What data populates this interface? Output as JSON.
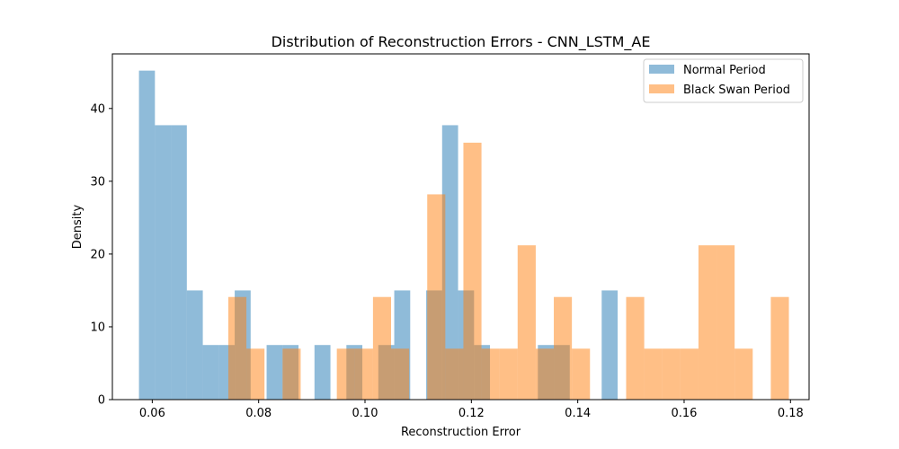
{
  "chart_data": {
    "type": "bar",
    "title": "Distribution of Reconstruction Errors - CNN_LSTM_AE",
    "xlabel": "Reconstruction Error",
    "ylabel": "Density",
    "xlim": [
      0.0525,
      0.1835
    ],
    "ylim": [
      0,
      47.5
    ],
    "xticks": [
      0.06,
      0.08,
      0.1,
      0.12,
      0.14,
      0.16,
      0.18
    ],
    "xtick_labels": [
      "0.06",
      "0.08",
      "0.10",
      "0.12",
      "0.14",
      "0.16",
      "0.18"
    ],
    "yticks": [
      0,
      10,
      20,
      30,
      40
    ],
    "ytick_labels": [
      "0",
      "10",
      "20",
      "30",
      "40"
    ],
    "legend_position": "top-right",
    "series": [
      {
        "name": "Normal Period",
        "color": "#1f77b4",
        "alpha": 0.5,
        "bins": [
          [
            0.0575,
            0.0605,
            45.2
          ],
          [
            0.0605,
            0.0635,
            37.7
          ],
          [
            0.0635,
            0.0665,
            37.7
          ],
          [
            0.0665,
            0.0695,
            15.0
          ],
          [
            0.0695,
            0.0725,
            7.5
          ],
          [
            0.0725,
            0.0755,
            7.5
          ],
          [
            0.0755,
            0.0785,
            15.0
          ],
          [
            0.0785,
            0.0815,
            0
          ],
          [
            0.0815,
            0.0845,
            7.5
          ],
          [
            0.0845,
            0.0875,
            7.5
          ],
          [
            0.0875,
            0.0905,
            0
          ],
          [
            0.0905,
            0.0935,
            7.5
          ],
          [
            0.0935,
            0.0965,
            0
          ],
          [
            0.0965,
            0.0995,
            7.5
          ],
          [
            0.0995,
            0.1025,
            0
          ],
          [
            0.1025,
            0.1055,
            7.5
          ],
          [
            0.1055,
            0.1085,
            15.0
          ],
          [
            0.1085,
            0.1115,
            0
          ],
          [
            0.1115,
            0.1145,
            15.0
          ],
          [
            0.1145,
            0.1175,
            37.7
          ],
          [
            0.1175,
            0.1205,
            15.0
          ],
          [
            0.1205,
            0.1235,
            7.5
          ],
          [
            0.1235,
            0.1265,
            0
          ],
          [
            0.1265,
            0.1295,
            0
          ],
          [
            0.1295,
            0.1325,
            0
          ],
          [
            0.1325,
            0.1355,
            7.5
          ],
          [
            0.1355,
            0.1385,
            7.5
          ],
          [
            0.1385,
            0.1415,
            0
          ],
          [
            0.1415,
            0.1445,
            0
          ],
          [
            0.1445,
            0.1475,
            15.0
          ]
        ]
      },
      {
        "name": "Black Swan Period",
        "color": "#ff7f0e",
        "alpha": 0.5,
        "bins": [
          [
            0.0743,
            0.0777,
            14.1
          ],
          [
            0.0777,
            0.0811,
            7.0
          ],
          [
            0.0811,
            0.0845,
            0
          ],
          [
            0.0845,
            0.0879,
            7.0
          ],
          [
            0.0879,
            0.0913,
            0
          ],
          [
            0.0913,
            0.0947,
            0
          ],
          [
            0.0947,
            0.0981,
            7.0
          ],
          [
            0.0981,
            0.1015,
            7.0
          ],
          [
            0.1015,
            0.1049,
            14.1
          ],
          [
            0.1049,
            0.1083,
            7.0
          ],
          [
            0.1083,
            0.1117,
            0
          ],
          [
            0.1117,
            0.1151,
            28.2
          ],
          [
            0.1151,
            0.1185,
            7.0
          ],
          [
            0.1185,
            0.1219,
            35.3
          ],
          [
            0.1219,
            0.1253,
            7.0
          ],
          [
            0.1253,
            0.1287,
            7.0
          ],
          [
            0.1287,
            0.1321,
            21.2
          ],
          [
            0.1321,
            0.1355,
            7.0
          ],
          [
            0.1355,
            0.1389,
            14.1
          ],
          [
            0.1389,
            0.1423,
            7.0
          ],
          [
            0.1423,
            0.1457,
            0
          ],
          [
            0.1457,
            0.1491,
            0
          ],
          [
            0.1491,
            0.1525,
            14.1
          ],
          [
            0.1525,
            0.1559,
            7.0
          ],
          [
            0.1559,
            0.1593,
            7.0
          ],
          [
            0.1593,
            0.1627,
            7.0
          ],
          [
            0.1627,
            0.1661,
            21.2
          ],
          [
            0.1661,
            0.1695,
            21.2
          ],
          [
            0.1695,
            0.1729,
            7.0
          ],
          [
            0.1729,
            0.1763,
            0
          ],
          [
            0.1763,
            0.1797,
            14.1
          ]
        ]
      }
    ]
  }
}
